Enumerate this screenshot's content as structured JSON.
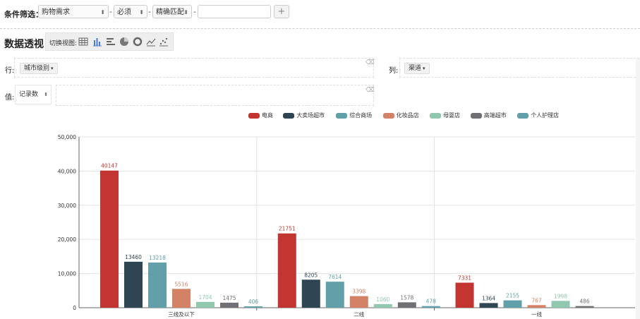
{
  "filter": {
    "label": "条件筛选：",
    "field_value": "购物需求",
    "condition_value": "必须",
    "match_value": "精确匹配",
    "separator": "-",
    "value_input": "",
    "add_label": "+"
  },
  "pivot": {
    "title": "数据透视",
    "switch_view_label": "切换视图:",
    "view_icons": [
      "table-icon",
      "bar-chart-icon",
      "horizontal-bar-icon",
      "pie-chart-icon",
      "donut-chart-icon",
      "line-chart-icon",
      "scatter-chart-icon"
    ],
    "row_label": "行:",
    "row_field": "城市级别",
    "col_label": "列:",
    "col_field": "渠道",
    "val_label": "值:",
    "val_field": "记录数"
  },
  "chart_data": {
    "type": "bar",
    "categories": [
      "三线及以下",
      "二线",
      "一线"
    ],
    "series": [
      {
        "name": "电商",
        "color": "#c23531",
        "values": [
          40147,
          21751,
          7331
        ]
      },
      {
        "name": "大卖场超市",
        "color": "#2f4554",
        "values": [
          13460,
          8205,
          1364
        ]
      },
      {
        "name": "综合商场",
        "color": "#61a0a8",
        "values": [
          13218,
          7614,
          2155
        ]
      },
      {
        "name": "化妆品店",
        "color": "#d48265",
        "values": [
          5516,
          3398,
          767
        ]
      },
      {
        "name": "母婴店",
        "color": "#91c7ae",
        "values": [
          1704,
          1060,
          1998
        ]
      },
      {
        "name": "高端超市",
        "color": "#6e7074",
        "values": [
          1475,
          1578,
          486
        ]
      },
      {
        "name": "个人护理店",
        "color": "#61a0a8",
        "values": [
          406,
          478,
          null
        ]
      }
    ],
    "yticks": [
      "0",
      "10,000",
      "20,000",
      "30,000",
      "40,000",
      "50,000"
    ],
    "ylim": [
      0,
      50000
    ],
    "grid": true,
    "legend": "top-center"
  }
}
